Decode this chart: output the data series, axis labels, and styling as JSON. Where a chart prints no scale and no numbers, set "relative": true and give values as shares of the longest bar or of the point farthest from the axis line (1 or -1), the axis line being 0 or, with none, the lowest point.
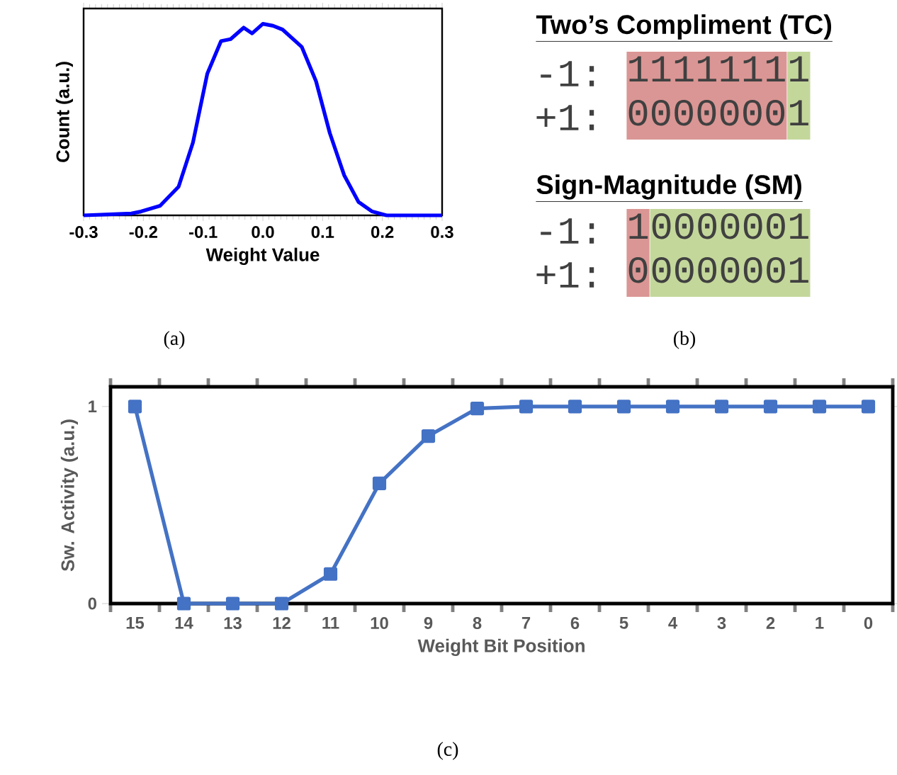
{
  "chart_data": [
    {
      "type": "line",
      "xlabel": "Weight Value",
      "ylabel": "Count (a.u.)",
      "relative": true,
      "color": "#0000ff",
      "marker": "none",
      "tick_labels": "x",
      "x": [
        -0.3,
        -0.22,
        -0.204,
        -0.172,
        -0.141,
        -0.117,
        -0.093,
        -0.07,
        -0.054,
        -0.032,
        -0.018,
        0.0,
        0.017,
        0.033,
        0.065,
        0.089,
        0.112,
        0.136,
        0.16,
        0.183,
        0.207,
        0.3
      ],
      "values": [
        0,
        0.01,
        0.02,
        0.05,
        0.15,
        0.38,
        0.74,
        0.91,
        0.92,
        0.98,
        0.95,
        1.0,
        0.99,
        0.97,
        0.88,
        0.7,
        0.43,
        0.21,
        0.07,
        0.02,
        0,
        0
      ],
      "xlim": [
        -0.3,
        0.3
      ],
      "xticks": [
        -0.3,
        -0.2,
        -0.1,
        {
          "value": 0,
          "label": "0.0"
        },
        0.1,
        0.2,
        0.3
      ],
      "annotations": [
        "(a)"
      ]
    },
    {
      "type": "other",
      "title": "Two’s Compliment (TC)",
      "subtitle": "Sign-Magnitude (SM)",
      "annotations": [
        "-1:",
        "1111111",
        "1",
        "+1:",
        "0000000",
        "1",
        "-1:",
        "1",
        "0000001",
        "+1:",
        "0",
        "0000001",
        "(b)"
      ]
    },
    {
      "type": "line",
      "xlabel": "Weight Bit Position",
      "ylabel": "Sw. Activity (a.u.)",
      "color": "#4472c4",
      "marker": "square",
      "categories": [
        "15",
        "14",
        "13",
        "12",
        "11",
        "10",
        "9",
        "8",
        "7",
        "6",
        "5",
        "4",
        "3",
        "2",
        "1",
        "0"
      ],
      "values": [
        1,
        0,
        0,
        0,
        0.15,
        0.61,
        0.85,
        0.99,
        1,
        1,
        1,
        1,
        1,
        1,
        1,
        1
      ],
      "ylim": [
        0,
        1.1
      ],
      "yticks": [
        0,
        1
      ],
      "annotations": [
        "(c)"
      ]
    }
  ]
}
